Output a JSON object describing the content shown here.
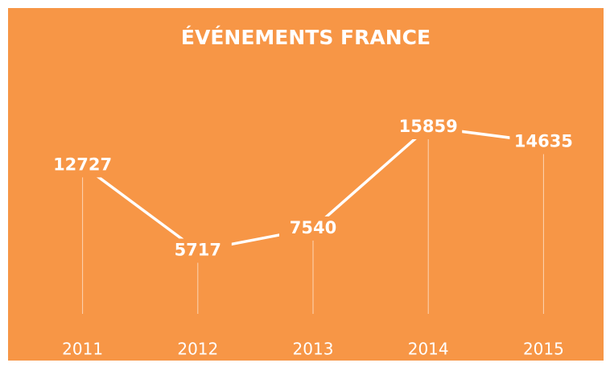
{
  "chart_data": {
    "type": "line",
    "title": "ÉVÉNEMENTS FRANCE",
    "categories": [
      "2011",
      "2012",
      "2013",
      "2014",
      "2015"
    ],
    "values": [
      12727,
      5717,
      7540,
      15859,
      14635
    ],
    "color": "#ffffff",
    "background": "#f79646",
    "grid": false
  }
}
